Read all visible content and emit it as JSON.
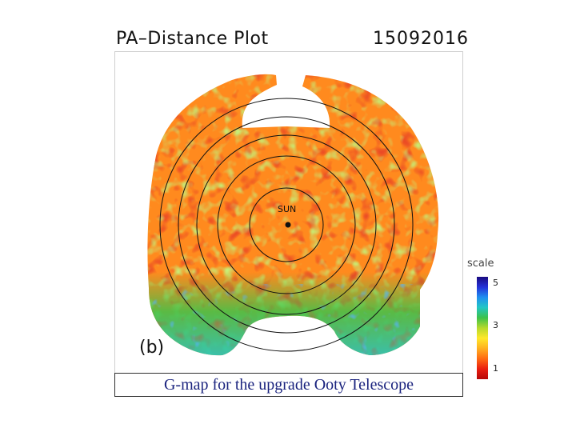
{
  "chart_data": {
    "type": "heatmap",
    "title": "PA–Distance Plot",
    "date": "15092016",
    "panel_label": "(b)",
    "center_label": "SUN",
    "rings": 5,
    "colorbar": {
      "title": "scale",
      "ticks": [
        "5",
        "3",
        "1"
      ],
      "tick_values": [
        5,
        3,
        1
      ],
      "range": [
        0.5,
        5.3
      ],
      "colors": [
        "#b50808",
        "#ea1e10",
        "#ff6a12",
        "#ffb020",
        "#ffe82a",
        "#b6d92c",
        "#3dc24a",
        "#22c6c4",
        "#1f8ff0",
        "#2432d8",
        "#1a0a80"
      ]
    },
    "value_summary": {
      "typical": 1.7,
      "southern_band": 3.0
    }
  },
  "caption": "G-map for the upgrade Ooty Telescope"
}
